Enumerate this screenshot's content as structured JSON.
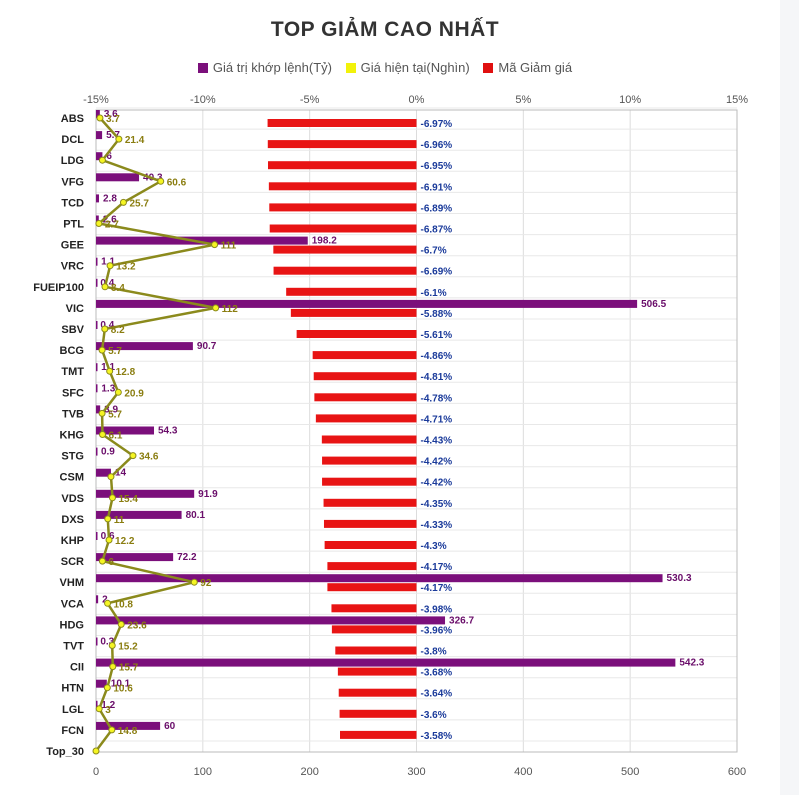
{
  "chart_data": {
    "type": "bar",
    "title": "TOP GIẢM CAO NHẤT",
    "legend": [
      {
        "name": "Giá trị khớp lệnh(Tỷ)",
        "color": "#7b0f7b"
      },
      {
        "name": "Giá hiện tại(Nghìn)",
        "color": "#f2f20a"
      },
      {
        "name": "Mã Giảm giá",
        "color": "#e01010"
      }
    ],
    "legend_position": "top",
    "grid": true,
    "categories": [
      "ABS",
      "DCL",
      "LDG",
      "VFG",
      "TCD",
      "PTL",
      "GEE",
      "VRC",
      "FUEIP100",
      "VIC",
      "SBV",
      "BCG",
      "TMT",
      "SFC",
      "TVB",
      "KHG",
      "STG",
      "CSM",
      "VDS",
      "DXS",
      "KHP",
      "SCR",
      "VHM",
      "VCA",
      "HDG",
      "TVT",
      "CII",
      "HTN",
      "LGL",
      "FCN",
      "Top_30"
    ],
    "value_axis": {
      "range": [
        0,
        600
      ],
      "ticks": [
        "0",
        "100",
        "200",
        "300",
        "400",
        "500",
        "600"
      ]
    },
    "pct_axis": {
      "range": [
        -15,
        15
      ],
      "ticks": [
        "-15%",
        "-10%",
        "-5%",
        "0%",
        "5%",
        "10%",
        "15%"
      ]
    },
    "series": [
      {
        "name": "Giá trị khớp lệnh(Tỷ)",
        "type": "bar",
        "axis": "value",
        "values": [
          3.6,
          5.7,
          6,
          40.3,
          2.8,
          2.6,
          198.2,
          1.1,
          0.4,
          506.5,
          0.4,
          90.7,
          1.1,
          1.3,
          3.9,
          54.3,
          0.9,
          14,
          91.9,
          80.1,
          0.6,
          72.2,
          530.3,
          2,
          326.7,
          0.3,
          542.3,
          10.1,
          1.2,
          60,
          null
        ],
        "labels": [
          "3.6",
          "5.7",
          "6",
          "40.3",
          "2.8",
          "2.6",
          "198.2",
          "1.1",
          "0.4",
          "506.5",
          "0.4",
          "90.7",
          "1.1",
          "1.3",
          "3.9",
          "54.3",
          "0.9",
          "14",
          "91.9",
          "80.1",
          "0.6",
          "72.2",
          "530.3",
          "2",
          "326.7",
          "0.3",
          "542.3",
          "10.1",
          "1.2",
          "60",
          ""
        ]
      },
      {
        "name": "Giá hiện tại(Nghìn)",
        "type": "line",
        "axis": "value",
        "values": [
          3.7,
          21.4,
          6,
          60.6,
          25.7,
          2.7,
          111,
          13.2,
          8.4,
          112,
          8.2,
          5.7,
          12.8,
          20.9,
          5.7,
          6.1,
          34.6,
          14,
          15.4,
          11,
          12.2,
          6,
          92,
          10.8,
          23.6,
          15.2,
          15.7,
          10.6,
          3,
          14.8,
          0
        ],
        "labels": [
          "3.7",
          "21.4",
          "",
          "60.6",
          "25.7",
          "2.7",
          "111",
          "13.2",
          "8.4",
          "112",
          "8.2",
          "5.7",
          "12.8",
          "20.9",
          "5.7",
          "6.1",
          "34.6",
          "",
          "15.4",
          "11",
          "12.2",
          "6",
          "92",
          "10.8",
          "23.6",
          "15.2",
          "15.7",
          "10.6",
          "3",
          "14.8",
          ""
        ]
      },
      {
        "name": "Mã Giảm giá",
        "type": "bar",
        "axis": "pct",
        "values": [
          -6.97,
          -6.96,
          -6.95,
          -6.91,
          -6.89,
          -6.87,
          -6.7,
          -6.69,
          -6.1,
          -5.88,
          -5.61,
          -4.86,
          -4.81,
          -4.78,
          -4.71,
          -4.43,
          -4.42,
          -4.42,
          -4.35,
          -4.33,
          -4.3,
          -4.17,
          -4.17,
          -3.98,
          -3.96,
          -3.8,
          -3.68,
          -3.64,
          -3.6,
          -3.58,
          null
        ],
        "labels": [
          "-6.97%",
          "-6.96%",
          "-6.95%",
          "-6.91%",
          "-6.89%",
          "-6.87%",
          "-6.7%",
          "-6.69%",
          "-6.1%",
          "-5.88%",
          "-5.61%",
          "-4.86%",
          "-4.81%",
          "-4.78%",
          "-4.71%",
          "-4.43%",
          "-4.42%",
          "-4.42%",
          "-4.35%",
          "-4.33%",
          "-4.3%",
          "-4.17%",
          "-4.17%",
          "-3.98%",
          "-3.96%",
          "-3.8%",
          "-3.68%",
          "-3.64%",
          "-3.6%",
          "-3.58%",
          ""
        ]
      }
    ]
  }
}
